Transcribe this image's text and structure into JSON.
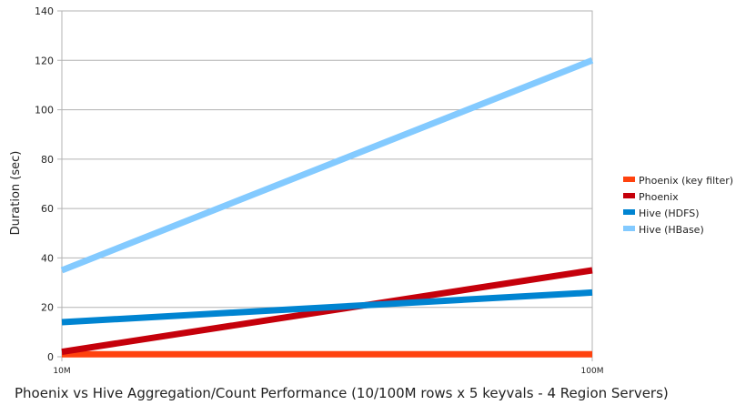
{
  "chart_data": {
    "type": "line",
    "title": "Phoenix vs Hive Aggregation/Count Performance (10/100M rows x 5 keyvals - 4 Region Servers)",
    "xlabel": "",
    "ylabel": "Duration (sec)",
    "categories": [
      "10M",
      "100M"
    ],
    "ylim": [
      0,
      140
    ],
    "yticks": [
      0,
      20,
      40,
      60,
      80,
      100,
      120,
      140
    ],
    "grid": true,
    "legend_position": "right",
    "series": [
      {
        "name": "Phoenix (key filter)",
        "color": "#ff420e",
        "values": [
          1,
          1
        ]
      },
      {
        "name": "Phoenix",
        "color": "#c5000b",
        "values": [
          2,
          35
        ]
      },
      {
        "name": "Hive (HDFS)",
        "color": "#0084d1",
        "values": [
          14,
          26
        ]
      },
      {
        "name": "Hive (HBase)",
        "color": "#83caff",
        "values": [
          35,
          120
        ]
      }
    ]
  }
}
